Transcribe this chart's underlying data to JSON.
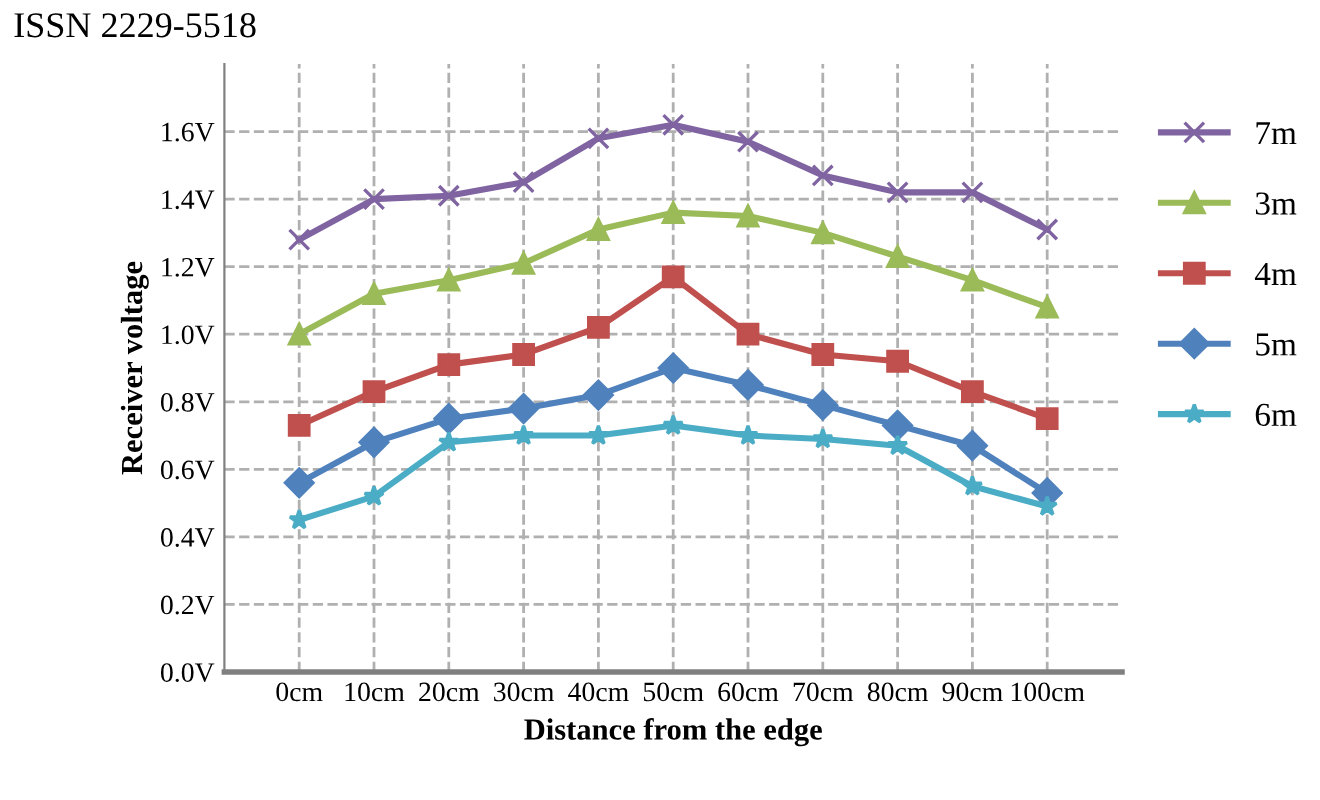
{
  "chart_data": {
    "type": "line",
    "xlabel": "Distance from the edge",
    "ylabel": "Receiver voltage",
    "annotations": [
      "ISSN 2229-5518"
    ],
    "categories": [
      "0cm",
      "10cm",
      "20cm",
      "30cm",
      "40cm",
      "50cm",
      "60cm",
      "70cm",
      "80cm",
      "90cm",
      "100cm"
    ],
    "series": [
      {
        "name": "7m",
        "color": "#8064a2",
        "marker": "cross",
        "values": [
          1.28,
          1.4,
          1.41,
          1.45,
          1.58,
          1.62,
          1.57,
          1.47,
          1.42,
          1.42,
          1.31
        ]
      },
      {
        "name": "3m",
        "color": "#9bbb59",
        "marker": "triangle",
        "values": [
          1.0,
          1.12,
          1.16,
          1.21,
          1.31,
          1.36,
          1.35,
          1.3,
          1.23,
          1.16,
          1.08
        ]
      },
      {
        "name": "4m",
        "color": "#c0504d",
        "marker": "square",
        "values": [
          0.73,
          0.83,
          0.91,
          0.94,
          1.02,
          1.17,
          1.0,
          0.94,
          0.92,
          0.83,
          0.75
        ]
      },
      {
        "name": "5m",
        "color": "#4f81bd",
        "marker": "diamond",
        "values": [
          0.56,
          0.68,
          0.75,
          0.78,
          0.82,
          0.9,
          0.85,
          0.79,
          0.73,
          0.67,
          0.53
        ]
      },
      {
        "name": "6m",
        "color": "#4bacc6",
        "marker": "star",
        "values": [
          0.45,
          0.52,
          0.68,
          0.7,
          0.7,
          0.73,
          0.7,
          0.69,
          0.67,
          0.55,
          0.49
        ]
      }
    ],
    "ylim": [
      0,
      1.8
    ],
    "yticks": [
      {
        "value": 0,
        "label": "0.0V"
      },
      {
        "value": 0.2,
        "label": "0.2V"
      },
      {
        "value": 0.4,
        "label": "0.4V"
      },
      {
        "value": 0.6,
        "label": "0.6V"
      },
      {
        "value": 0.8,
        "label": "0.8V"
      },
      {
        "value": 1.0,
        "label": "1.0V"
      },
      {
        "value": 1.2,
        "label": "1.2V"
      },
      {
        "value": 1.4,
        "label": "1.4V"
      },
      {
        "value": 1.6,
        "label": "1.6V"
      }
    ],
    "grid": true,
    "legend": "right",
    "line_style": "solid"
  }
}
